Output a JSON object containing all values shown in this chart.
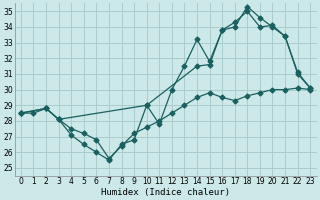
{
  "xlabel": "Humidex (Indice chaleur)",
  "background_color": "#cce8e8",
  "grid_color": "#aacccc",
  "line_color": "#1a6060",
  "xlim": [
    -0.5,
    23.5
  ],
  "ylim": [
    24.5,
    35.5
  ],
  "xticks": [
    0,
    1,
    2,
    3,
    4,
    5,
    6,
    7,
    8,
    9,
    10,
    11,
    12,
    13,
    14,
    15,
    16,
    17,
    18,
    19,
    20,
    21,
    22,
    23
  ],
  "yticks": [
    25,
    26,
    27,
    28,
    29,
    30,
    31,
    32,
    33,
    34,
    35
  ],
  "line1_x": [
    0,
    1,
    2,
    3,
    4,
    5,
    6,
    7,
    8,
    9,
    10,
    11,
    12,
    13,
    14,
    15,
    16,
    17,
    18,
    19,
    20,
    21,
    22,
    23
  ],
  "line1_y": [
    28.5,
    28.5,
    28.8,
    28.1,
    27.5,
    27.2,
    26.8,
    25.6,
    26.4,
    27.2,
    27.6,
    28.0,
    28.5,
    29.0,
    29.5,
    29.8,
    29.5,
    29.3,
    29.6,
    29.8,
    30.0,
    30.0,
    30.1,
    30.0
  ],
  "line2_x": [
    0,
    2,
    3,
    4,
    5,
    6,
    7,
    8,
    9,
    10,
    11,
    12,
    13,
    14,
    15,
    16,
    17,
    18,
    19,
    20,
    21,
    22,
    23
  ],
  "line2_y": [
    28.5,
    28.8,
    28.1,
    27.1,
    26.5,
    26.0,
    25.5,
    26.5,
    26.8,
    29.0,
    27.8,
    30.0,
    31.5,
    33.2,
    31.8,
    33.8,
    34.3,
    35.0,
    34.0,
    34.1,
    33.4,
    31.1,
    30.1
  ],
  "line3_x": [
    0,
    2,
    3,
    10,
    14,
    15,
    16,
    17,
    18,
    19,
    20,
    21,
    22,
    23
  ],
  "line3_y": [
    28.5,
    28.8,
    28.1,
    29.0,
    31.5,
    31.6,
    33.8,
    34.0,
    35.3,
    34.6,
    34.0,
    33.4,
    31.0,
    30.1
  ]
}
